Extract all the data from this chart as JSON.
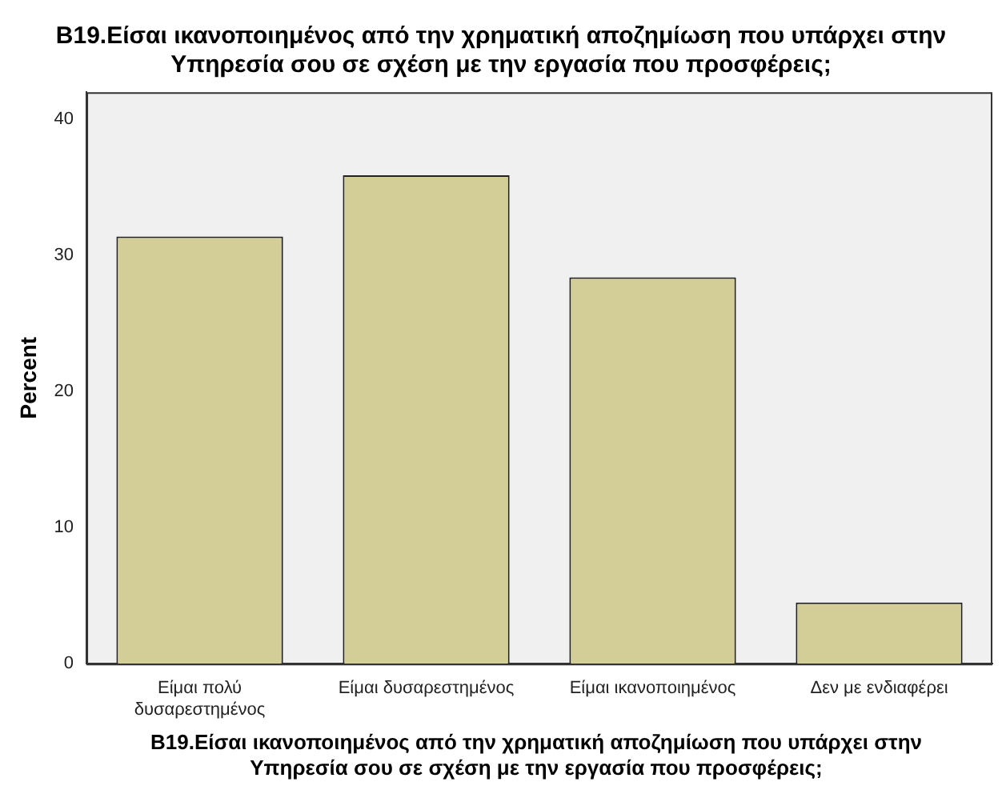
{
  "chart_data": {
    "type": "bar",
    "title": "B19.Είσαι ικανοποιημένος από την χρηματική αποζημίωση που υπάρχει στην Υπηρεσία σου σε σχέση με την εργασία που προσφέρεις;",
    "xlabel": "B19.Είσαι ικανοποιημένος από την χρηματική αποζημίωση που υπάρχει στην Υπηρεσία σου σε σχέση με την εργασία που προσφέρεις;",
    "ylabel": "Percent",
    "categories": [
      "Είμαι πολύ δυσαρεστημένος",
      "Είμαι δυσαρεστημένος",
      "Είμαι ικανοποιημένος",
      "Δεν με ενδιαφέρει"
    ],
    "values": [
      31.4,
      35.9,
      28.4,
      4.5
    ],
    "color": "#d3ce97",
    "ylim": [
      0,
      42
    ],
    "yticks": [
      0,
      10,
      20,
      30,
      40
    ],
    "grid": false,
    "legend": false
  }
}
